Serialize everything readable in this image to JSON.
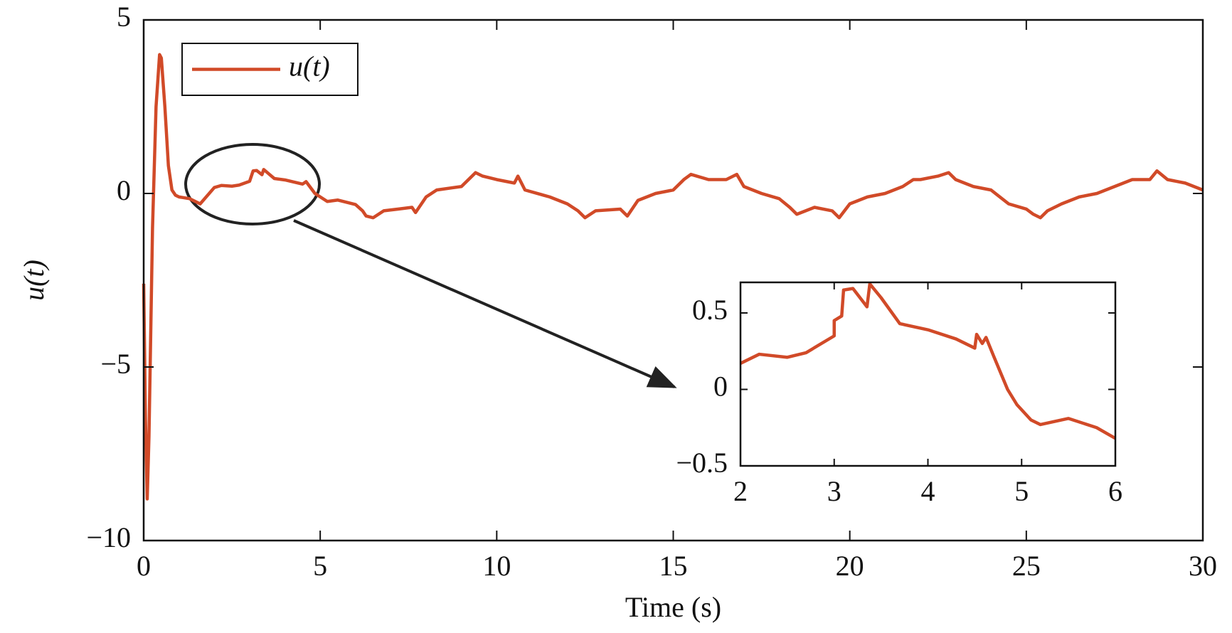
{
  "chart_data": [
    {
      "type": "line",
      "xlabel": "Time (s)",
      "ylabel": "u(t)",
      "xlim": [
        0,
        30
      ],
      "ylim": [
        -10,
        5
      ],
      "xticks": [
        0,
        5,
        10,
        15,
        20,
        25,
        30
      ],
      "yticks": [
        {
          "value": -10,
          "label": "−10"
        },
        {
          "value": -5,
          "label": "−5"
        },
        0,
        5
      ],
      "legend": "upper left",
      "series": [
        {
          "name": "u(t)",
          "color": "#d14a28",
          "x": [
            0,
            0.05,
            0.1,
            0.15,
            0.25,
            0.35,
            0.45,
            0.5,
            0.6,
            0.7,
            0.8,
            0.9,
            1.0,
            1.3,
            1.6,
            2.0,
            2.2,
            2.5,
            2.7,
            3.0,
            3.1,
            3.2,
            3.35,
            3.4,
            3.7,
            4.0,
            4.5,
            4.6,
            4.85,
            5.2,
            5.5,
            6.0,
            6.2,
            6.3,
            6.5,
            6.8,
            7.2,
            7.6,
            7.7,
            8.0,
            8.3,
            9.0,
            9.2,
            9.4,
            9.6,
            10.0,
            10.5,
            10.6,
            10.8,
            11.5,
            12.0,
            12.3,
            12.5,
            12.8,
            13.5,
            13.7,
            14.0,
            14.5,
            15.0,
            15.3,
            15.5,
            16.0,
            16.5,
            16.8,
            17.0,
            17.5,
            18.0,
            18.3,
            18.5,
            19.0,
            19.5,
            19.7,
            20.0,
            20.5,
            21.0,
            21.5,
            21.8,
            22.0,
            22.5,
            22.8,
            23.0,
            23.5,
            24.0,
            24.5,
            25.0,
            25.2,
            25.4,
            25.6,
            26.0,
            26.5,
            27.0,
            27.5,
            28.0,
            28.5,
            28.7,
            29.0,
            29.5,
            30.0
          ],
          "values": [
            -2.6,
            -6.5,
            -8.8,
            -7,
            -1,
            2.5,
            4.0,
            3.9,
            2.5,
            0.8,
            0.1,
            -0.05,
            -0.1,
            -0.15,
            -0.3,
            0.17,
            0.23,
            0.21,
            0.24,
            0.35,
            0.65,
            0.66,
            0.54,
            0.69,
            0.43,
            0.39,
            0.27,
            0.34,
            0.0,
            -0.23,
            -0.19,
            -0.32,
            -0.5,
            -0.65,
            -0.7,
            -0.5,
            -0.45,
            -0.4,
            -0.55,
            -0.1,
            0.1,
            0.2,
            0.4,
            0.6,
            0.5,
            0.4,
            0.3,
            0.5,
            0.1,
            -0.1,
            -0.3,
            -0.5,
            -0.7,
            -0.5,
            -0.45,
            -0.65,
            -0.2,
            0.0,
            0.1,
            0.4,
            0.55,
            0.4,
            0.4,
            0.55,
            0.2,
            0.0,
            -0.15,
            -0.4,
            -0.6,
            -0.4,
            -0.5,
            -0.7,
            -0.3,
            -0.1,
            0.0,
            0.2,
            0.4,
            0.4,
            0.5,
            0.6,
            0.4,
            0.2,
            0.1,
            -0.3,
            -0.45,
            -0.6,
            -0.7,
            -0.5,
            -0.3,
            -0.1,
            0.0,
            0.2,
            0.4,
            0.4,
            0.65,
            0.4,
            0.3,
            0.1
          ]
        }
      ]
    },
    {
      "type": "line",
      "xlim": [
        2,
        6
      ],
      "ylim": [
        -0.5,
        0.7
      ],
      "xticks": [
        2,
        3,
        4,
        5,
        6
      ],
      "yticks": [
        {
          "value": -0.5,
          "label": "−0.5"
        },
        0,
        0.5
      ],
      "color": "#d14a28",
      "x": [
        2.0,
        2.2,
        2.5,
        2.7,
        3.0,
        3.0,
        3.08,
        3.1,
        3.2,
        3.35,
        3.38,
        3.5,
        3.7,
        4.0,
        4.3,
        4.5,
        4.52,
        4.58,
        4.62,
        4.7,
        4.85,
        4.95,
        5.1,
        5.2,
        5.5,
        5.8,
        6.0
      ],
      "values": [
        0.17,
        0.23,
        0.21,
        0.24,
        0.35,
        0.45,
        0.48,
        0.65,
        0.66,
        0.54,
        0.69,
        0.6,
        0.43,
        0.39,
        0.33,
        0.27,
        0.36,
        0.3,
        0.34,
        0.22,
        0.0,
        -0.1,
        -0.2,
        -0.23,
        -0.19,
        -0.25,
        -0.32
      ]
    }
  ]
}
